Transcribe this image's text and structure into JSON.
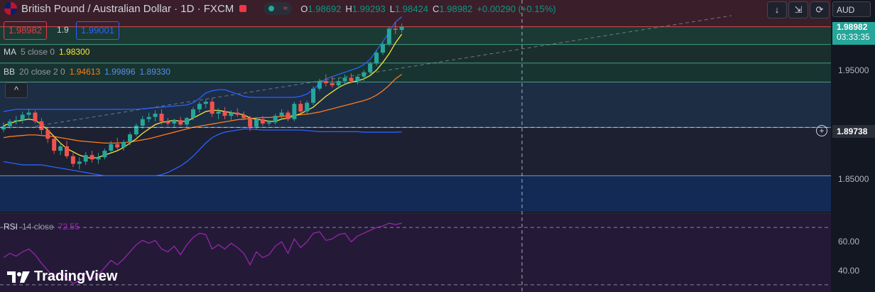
{
  "header": {
    "symbol_title": "British Pound / Australian Dollar · 1D · FXCM",
    "ohlc": [
      {
        "k": "O",
        "v": "1.98692"
      },
      {
        "k": "H",
        "v": "1.99293"
      },
      {
        "k": "L",
        "v": "1.98424"
      },
      {
        "k": "C",
        "v": "1.98982"
      },
      {
        "k": "",
        "v": "+0.00290 (+0.15%)"
      }
    ],
    "pill_symbol": "≈"
  },
  "sell_price": "1.98982",
  "spread": "1.9",
  "buy_price": "1.99001",
  "toolbar": {
    "down_icon": "↓",
    "collapse_icon": "⇲",
    "refresh_icon": "⟳",
    "currency": "AUD"
  },
  "indicators": {
    "ma": {
      "name": "MA",
      "params": "5 close 0",
      "value": "1.98300"
    },
    "bb": {
      "name": "BB",
      "params": "20 close 2 0",
      "v1": "1.94613",
      "v2": "1.99896",
      "v3": "1.89330"
    },
    "collapse_icon": "^",
    "rsi": {
      "name": "RSI",
      "params": "14 close",
      "value": "72.55"
    }
  },
  "price_axis": {
    "current": "1.98982",
    "countdown": "03:33:35",
    "crosshair": "1.89738",
    "ticks": [
      {
        "label": "1.95000",
        "value": 1.95
      },
      {
        "label": "1.85000",
        "value": 1.85
      }
    ],
    "rsi_ticks": [
      {
        "label": "60.00",
        "value": 60
      },
      {
        "label": "40.00",
        "value": 40
      }
    ]
  },
  "logo_text": "TradingView",
  "colors": {
    "up": "#26a69a",
    "down": "#ef5350",
    "ma": "#f7e63a",
    "bb_basis": "#ff7b1a",
    "bb_band": "#2962ff",
    "rsi": "#9c27b0"
  },
  "chart_data": {
    "type": "candlestick",
    "title": "British Pound / Australian Dollar · 1D · FXCM",
    "ylim": [
      1.82,
      2.0
    ],
    "rsi_ylim": [
      25,
      80
    ],
    "candles": [
      [
        1.8955,
        1.902,
        1.893,
        1.8985
      ],
      [
        1.8985,
        1.905,
        1.896,
        1.903
      ],
      [
        1.903,
        1.908,
        1.9,
        1.904
      ],
      [
        1.904,
        1.912,
        1.901,
        1.909
      ],
      [
        1.909,
        1.914,
        1.906,
        1.911
      ],
      [
        1.911,
        1.913,
        1.901,
        1.903
      ],
      [
        1.903,
        1.906,
        1.891,
        1.895
      ],
      [
        1.895,
        1.897,
        1.883,
        1.887
      ],
      [
        1.887,
        1.889,
        1.873,
        1.876
      ],
      [
        1.876,
        1.883,
        1.872,
        1.88
      ],
      [
        1.88,
        1.885,
        1.869,
        1.871
      ],
      [
        1.871,
        1.874,
        1.861,
        1.864
      ],
      [
        1.864,
        1.87,
        1.859,
        1.866
      ],
      [
        1.866,
        1.875,
        1.863,
        1.872
      ],
      [
        1.872,
        1.876,
        1.865,
        1.868
      ],
      [
        1.868,
        1.874,
        1.864,
        1.87
      ],
      [
        1.87,
        1.878,
        1.868,
        1.876
      ],
      [
        1.876,
        1.885,
        1.874,
        1.882
      ],
      [
        1.882,
        1.888,
        1.877,
        1.879
      ],
      [
        1.879,
        1.886,
        1.876,
        1.884
      ],
      [
        1.884,
        1.893,
        1.881,
        1.891
      ],
      [
        1.891,
        1.901,
        1.889,
        1.899
      ],
      [
        1.899,
        1.908,
        1.896,
        1.905
      ],
      [
        1.905,
        1.911,
        1.902,
        1.907
      ],
      [
        1.907,
        1.913,
        1.903,
        1.91
      ],
      [
        1.91,
        1.914,
        1.9,
        1.903
      ],
      [
        1.903,
        1.906,
        1.899,
        1.901
      ],
      [
        1.901,
        1.905,
        1.898,
        1.904
      ],
      [
        1.904,
        1.907,
        1.899,
        1.9
      ],
      [
        1.9,
        1.907,
        1.898,
        1.906
      ],
      [
        1.906,
        1.916,
        1.904,
        1.914
      ],
      [
        1.914,
        1.921,
        1.911,
        1.919
      ],
      [
        1.919,
        1.923,
        1.915,
        1.921
      ],
      [
        1.921,
        1.924,
        1.907,
        1.91
      ],
      [
        1.91,
        1.915,
        1.905,
        1.912
      ],
      [
        1.912,
        1.916,
        1.905,
        1.908
      ],
      [
        1.908,
        1.913,
        1.904,
        1.911
      ],
      [
        1.911,
        1.915,
        1.907,
        1.909
      ],
      [
        1.909,
        1.912,
        1.904,
        1.906
      ],
      [
        1.906,
        1.908,
        1.894,
        1.898
      ],
      [
        1.898,
        1.907,
        1.896,
        1.905
      ],
      [
        1.905,
        1.908,
        1.899,
        1.901
      ],
      [
        1.901,
        1.904,
        1.899,
        1.902
      ],
      [
        1.902,
        1.91,
        1.9,
        1.908
      ],
      [
        1.908,
        1.914,
        1.905,
        1.911
      ],
      [
        1.911,
        1.913,
        1.903,
        1.905
      ],
      [
        1.905,
        1.921,
        1.903,
        1.919
      ],
      [
        1.919,
        1.922,
        1.91,
        1.912
      ],
      [
        1.912,
        1.922,
        1.91,
        1.92
      ],
      [
        1.92,
        1.935,
        1.918,
        1.933
      ],
      [
        1.933,
        1.942,
        1.931,
        1.94
      ],
      [
        1.94,
        1.946,
        1.935,
        1.938
      ],
      [
        1.938,
        1.944,
        1.934,
        1.936
      ],
      [
        1.936,
        1.943,
        1.933,
        1.94
      ],
      [
        1.94,
        1.946,
        1.937,
        1.943
      ],
      [
        1.943,
        1.947,
        1.938,
        1.94
      ],
      [
        1.94,
        1.945,
        1.937,
        1.944
      ],
      [
        1.944,
        1.95,
        1.94,
        1.948
      ],
      [
        1.948,
        1.958,
        1.946,
        1.956
      ],
      [
        1.956,
        1.968,
        1.954,
        1.966
      ],
      [
        1.966,
        1.976,
        1.964,
        1.974
      ],
      [
        1.974,
        1.99,
        1.972,
        1.988
      ],
      [
        1.988,
        1.994,
        1.983,
        1.987
      ],
      [
        1.9869,
        1.9929,
        1.9842,
        1.9898
      ]
    ],
    "ma5": [
      1.899,
      1.901,
      1.903,
      1.904,
      1.905,
      1.904,
      1.9,
      1.895,
      1.889,
      1.883,
      1.878,
      1.875,
      1.872,
      1.87,
      1.869,
      1.87,
      1.872,
      1.874,
      1.876,
      1.879,
      1.883,
      1.887,
      1.892,
      1.896,
      1.9,
      1.902,
      1.903,
      1.904,
      1.903,
      1.903,
      1.906,
      1.909,
      1.912,
      1.913,
      1.913,
      1.912,
      1.911,
      1.91,
      1.909,
      1.906,
      1.905,
      1.904,
      1.903,
      1.903,
      1.905,
      1.906,
      1.908,
      1.91,
      1.913,
      1.916,
      1.921,
      1.926,
      1.93,
      1.934,
      1.937,
      1.939,
      1.94,
      1.942,
      1.945,
      1.95,
      1.957,
      1.965,
      1.975,
      1.983
    ],
    "bb_basis": [
      1.888,
      1.889,
      1.8895,
      1.89,
      1.8905,
      1.8905,
      1.89,
      1.8895,
      1.889,
      1.888,
      1.887,
      1.886,
      1.885,
      1.8845,
      1.884,
      1.8835,
      1.883,
      1.883,
      1.883,
      1.8835,
      1.884,
      1.885,
      1.886,
      1.887,
      1.8885,
      1.89,
      1.8915,
      1.893,
      1.8945,
      1.896,
      1.8975,
      1.8985,
      1.8995,
      1.9005,
      1.9015,
      1.9025,
      1.9035,
      1.9045,
      1.905,
      1.9055,
      1.906,
      1.9065,
      1.9065,
      1.907,
      1.9075,
      1.908,
      1.9085,
      1.909,
      1.9095,
      1.9105,
      1.9115,
      1.913,
      1.9145,
      1.916,
      1.9175,
      1.919,
      1.9205,
      1.922,
      1.924,
      1.927,
      1.931,
      1.936,
      1.942,
      1.9461
    ],
    "bb_upper": [
      1.912,
      1.913,
      1.914,
      1.914,
      1.914,
      1.914,
      1.914,
      1.914,
      1.914,
      1.914,
      1.914,
      1.914,
      1.914,
      1.914,
      1.914,
      1.914,
      1.914,
      1.914,
      1.914,
      1.914,
      1.914,
      1.914,
      1.9145,
      1.915,
      1.9155,
      1.916,
      1.9165,
      1.917,
      1.9175,
      1.918,
      1.92,
      1.924,
      1.929,
      1.931,
      1.932,
      1.932,
      1.93,
      1.928,
      1.926,
      1.925,
      1.925,
      1.925,
      1.925,
      1.925,
      1.925,
      1.925,
      1.925,
      1.926,
      1.928,
      1.932,
      1.938,
      1.942,
      1.944,
      1.946,
      1.948,
      1.95,
      1.952,
      1.955,
      1.96,
      1.968,
      1.976,
      1.985,
      1.994,
      1.999
    ],
    "bb_lower": [
      1.866,
      1.865,
      1.864,
      1.863,
      1.863,
      1.863,
      1.863,
      1.862,
      1.861,
      1.86,
      1.859,
      1.858,
      1.857,
      1.856,
      1.855,
      1.854,
      1.853,
      1.853,
      1.853,
      1.853,
      1.853,
      1.853,
      1.853,
      1.853,
      1.853,
      1.854,
      1.856,
      1.859,
      1.862,
      1.866,
      1.871,
      1.877,
      1.883,
      1.888,
      1.891,
      1.893,
      1.894,
      1.895,
      1.896,
      1.896,
      1.8955,
      1.895,
      1.895,
      1.895,
      1.895,
      1.895,
      1.895,
      1.895,
      1.8945,
      1.894,
      1.8935,
      1.8935,
      1.8935,
      1.8935,
      1.8935,
      1.8935,
      1.8935,
      1.893,
      1.893,
      1.893,
      1.893,
      1.893,
      1.893,
      1.8933
    ],
    "rsi": [
      49,
      52,
      50,
      53,
      55,
      51,
      45,
      40,
      35,
      39,
      34,
      31,
      33,
      38,
      34,
      37,
      42,
      47,
      44,
      48,
      53,
      58,
      61,
      59,
      61,
      55,
      53,
      57,
      51,
      58,
      63,
      66,
      65,
      55,
      58,
      55,
      59,
      56,
      52,
      44,
      53,
      49,
      51,
      57,
      60,
      52,
      62,
      56,
      60,
      66,
      67,
      61,
      62,
      65,
      66,
      60,
      64,
      66,
      68,
      70,
      71,
      73,
      72,
      73
    ],
    "hlines": [
      1.9898,
      1.9735,
      1.9565,
      1.939,
      1.8974,
      1.853
    ],
    "crosshair_x": 64.5,
    "crosshair_y": 1.8974
  }
}
